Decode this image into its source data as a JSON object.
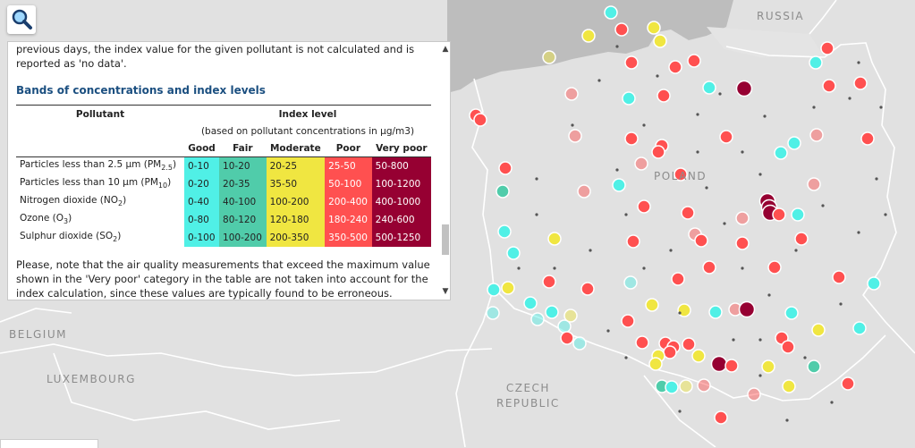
{
  "map": {
    "labels": {
      "russia": "RUSSIA",
      "poland": "POLAND",
      "belgium": "BELGIUM",
      "luxembourg": "LUXEMBOURG",
      "czech_line1": "CZECH",
      "czech_line2": "REPUBLIC"
    },
    "colors": {
      "land": "#e1e1e1",
      "sea": "#bdbdbd",
      "border": "#ffffff",
      "good": "#50f0e6",
      "fair": "#50ccaa",
      "moderate": "#f0e641",
      "poor": "#ff5050",
      "very_poor": "#960032"
    }
  },
  "search": {
    "icon": "magnifier-icon"
  },
  "panel": {
    "intro": "previous days, the index value for the given pollutant is not calculated and is reported as 'no data'.",
    "bands_title": "Bands of concentrations and index levels",
    "table": {
      "pollutant_header": "Pollutant",
      "index_header": "Index level",
      "index_sub": "(based on pollutant concentrations in µg/m3)",
      "levels": [
        "Good",
        "Fair",
        "Moderate",
        "Poor",
        "Very poor"
      ],
      "rows": [
        {
          "name": "Particles less than 2.5 µm (PM",
          "sub": "2.5",
          "tail": ")",
          "values": [
            "0-10",
            "10-20",
            "20-25",
            "25-50",
            "50-800"
          ]
        },
        {
          "name": "Particles less than 10 µm (PM",
          "sub": "10",
          "tail": ")",
          "values": [
            "0-20",
            "20-35",
            "35-50",
            "50-100",
            "100-1200"
          ]
        },
        {
          "name": "Nitrogen dioxide (NO",
          "sub": "2",
          "tail": ")",
          "values": [
            "0-40",
            "40-100",
            "100-200",
            "200-400",
            "400-1000"
          ]
        },
        {
          "name": "Ozone (O",
          "sub": "3",
          "tail": ")",
          "values": [
            "0-80",
            "80-120",
            "120-180",
            "180-240",
            "240-600"
          ]
        },
        {
          "name": "Sulphur dioxide (SO",
          "sub": "2",
          "tail": ")",
          "values": [
            "0-100",
            "100-200",
            "200-350",
            "350-500",
            "500-1250"
          ]
        }
      ]
    },
    "note": "Please, note that the air quality measurements that exceed the maximum value shown in the 'Very poor' category in the table are not taken into account for the index calculation, since these values are typically found to be erroneous.",
    "scroll": {
      "up": "▲",
      "down": "▼"
    }
  }
}
